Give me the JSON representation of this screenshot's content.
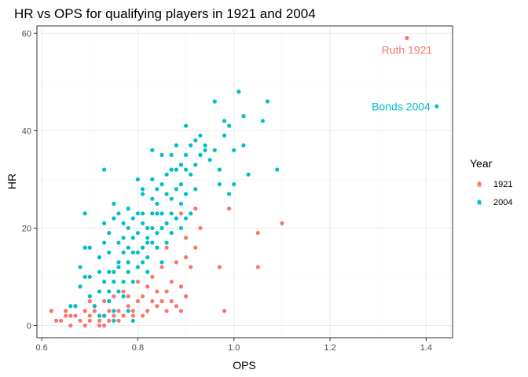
{
  "chart_data": {
    "type": "scatter",
    "title": "HR vs OPS for qualifying players in 1921 and 2004",
    "xlabel": "OPS",
    "ylabel": "HR",
    "xlim": [
      0.59,
      1.455
    ],
    "ylim": [
      -2.5,
      61.5
    ],
    "x_ticks": [
      0.6,
      0.8,
      1.0,
      1.2,
      1.4
    ],
    "x_tick_labels": [
      "0.6",
      "0.8",
      "1.0",
      "1.2",
      "1.4"
    ],
    "y_ticks": [
      0,
      20,
      40,
      60
    ],
    "y_tick_labels": [
      "0",
      "20",
      "40",
      "60"
    ],
    "grid": true,
    "legend": {
      "title": "Year",
      "position": "right",
      "entries": [
        {
          "label": "1921",
          "color": "#F8766D"
        },
        {
          "label": "2004",
          "color": "#00BFC4"
        }
      ]
    },
    "annotations": [
      {
        "text": "Ruth 1921",
        "x": 1.36,
        "y": 59,
        "color": "#F8766D"
      },
      {
        "text": "Bonds 2004",
        "x": 1.422,
        "y": 45,
        "color": "#00BFC4"
      }
    ],
    "series": [
      {
        "name": "1921",
        "color": "#F8766D",
        "points": [
          [
            0.62,
            3
          ],
          [
            0.63,
            1
          ],
          [
            0.64,
            1
          ],
          [
            0.65,
            2
          ],
          [
            0.65,
            3
          ],
          [
            0.66,
            0
          ],
          [
            0.66,
            2
          ],
          [
            0.67,
            2
          ],
          [
            0.67,
            4
          ],
          [
            0.68,
            1
          ],
          [
            0.69,
            0
          ],
          [
            0.69,
            3
          ],
          [
            0.7,
            1
          ],
          [
            0.7,
            2
          ],
          [
            0.7,
            5
          ],
          [
            0.71,
            3
          ],
          [
            0.71,
            4
          ],
          [
            0.72,
            0
          ],
          [
            0.72,
            1
          ],
          [
            0.73,
            0
          ],
          [
            0.73,
            2
          ],
          [
            0.73,
            5
          ],
          [
            0.74,
            1
          ],
          [
            0.74,
            3
          ],
          [
            0.75,
            2
          ],
          [
            0.75,
            6
          ],
          [
            0.76,
            1
          ],
          [
            0.76,
            3
          ],
          [
            0.77,
            2
          ],
          [
            0.77,
            7
          ],
          [
            0.78,
            4
          ],
          [
            0.78,
            6
          ],
          [
            0.79,
            3
          ],
          [
            0.79,
            2
          ],
          [
            0.8,
            5
          ],
          [
            0.8,
            9
          ],
          [
            0.81,
            2
          ],
          [
            0.81,
            6
          ],
          [
            0.82,
            3
          ],
          [
            0.82,
            8
          ],
          [
            0.83,
            5
          ],
          [
            0.83,
            10
          ],
          [
            0.84,
            4
          ],
          [
            0.84,
            7
          ],
          [
            0.85,
            5
          ],
          [
            0.85,
            12
          ],
          [
            0.86,
            3
          ],
          [
            0.86,
            7
          ],
          [
            0.86,
            16
          ],
          [
            0.87,
            5
          ],
          [
            0.87,
            9
          ],
          [
            0.88,
            4
          ],
          [
            0.88,
            13
          ],
          [
            0.89,
            3
          ],
          [
            0.89,
            8
          ],
          [
            0.89,
            23
          ],
          [
            0.9,
            6
          ],
          [
            0.9,
            14
          ],
          [
            0.9,
            18
          ],
          [
            0.91,
            12
          ],
          [
            0.91,
            23
          ],
          [
            0.92,
            16
          ],
          [
            0.92,
            24
          ],
          [
            0.93,
            20
          ],
          [
            0.97,
            12
          ],
          [
            0.98,
            3
          ],
          [
            0.99,
            24
          ],
          [
            1.05,
            12
          ],
          [
            1.05,
            19
          ],
          [
            1.1,
            21
          ],
          [
            1.36,
            59
          ]
        ]
      },
      {
        "name": "2004",
        "color": "#00BFC4",
        "points": [
          [
            0.66,
            4
          ],
          [
            0.67,
            4
          ],
          [
            0.68,
            12
          ],
          [
            0.68,
            8
          ],
          [
            0.69,
            23
          ],
          [
            0.69,
            16
          ],
          [
            0.69,
            10
          ],
          [
            0.7,
            10
          ],
          [
            0.7,
            16
          ],
          [
            0.7,
            6
          ],
          [
            0.71,
            4
          ],
          [
            0.72,
            14
          ],
          [
            0.72,
            7
          ],
          [
            0.72,
            2
          ],
          [
            0.72,
            11
          ],
          [
            0.73,
            32
          ],
          [
            0.73,
            17
          ],
          [
            0.73,
            9
          ],
          [
            0.73,
            2
          ],
          [
            0.73,
            21
          ],
          [
            0.74,
            11
          ],
          [
            0.74,
            19
          ],
          [
            0.74,
            7
          ],
          [
            0.74,
            15
          ],
          [
            0.74,
            5
          ],
          [
            0.75,
            25
          ],
          [
            0.75,
            22
          ],
          [
            0.75,
            11
          ],
          [
            0.75,
            3
          ],
          [
            0.75,
            9
          ],
          [
            0.75,
            1
          ],
          [
            0.76,
            13
          ],
          [
            0.76,
            23
          ],
          [
            0.76,
            7
          ],
          [
            0.76,
            17
          ],
          [
            0.76,
            12
          ],
          [
            0.77,
            15
          ],
          [
            0.77,
            21
          ],
          [
            0.77,
            9
          ],
          [
            0.77,
            6
          ],
          [
            0.77,
            18
          ],
          [
            0.78,
            13
          ],
          [
            0.78,
            24
          ],
          [
            0.78,
            16
          ],
          [
            0.78,
            11
          ],
          [
            0.78,
            3
          ],
          [
            0.78,
            20
          ],
          [
            0.79,
            15
          ],
          [
            0.79,
            18
          ],
          [
            0.79,
            9
          ],
          [
            0.79,
            22
          ],
          [
            0.79,
            1
          ],
          [
            0.8,
            23
          ],
          [
            0.8,
            30
          ],
          [
            0.8,
            15
          ],
          [
            0.8,
            19
          ],
          [
            0.8,
            12
          ],
          [
            0.81,
            27
          ],
          [
            0.81,
            21
          ],
          [
            0.81,
            28
          ],
          [
            0.81,
            16
          ],
          [
            0.81,
            13
          ],
          [
            0.81,
            23
          ],
          [
            0.82,
            18
          ],
          [
            0.82,
            20
          ],
          [
            0.82,
            17
          ],
          [
            0.82,
            11
          ],
          [
            0.82,
            14
          ],
          [
            0.83,
            36
          ],
          [
            0.83,
            30
          ],
          [
            0.83,
            23
          ],
          [
            0.83,
            20
          ],
          [
            0.83,
            17
          ],
          [
            0.83,
            26
          ],
          [
            0.84,
            25
          ],
          [
            0.84,
            16
          ],
          [
            0.84,
            28
          ],
          [
            0.84,
            19
          ],
          [
            0.84,
            23
          ],
          [
            0.85,
            29
          ],
          [
            0.85,
            35
          ],
          [
            0.85,
            23
          ],
          [
            0.85,
            20
          ],
          [
            0.85,
            13
          ],
          [
            0.86,
            31
          ],
          [
            0.86,
            21
          ],
          [
            0.86,
            27
          ],
          [
            0.86,
            17
          ],
          [
            0.87,
            32
          ],
          [
            0.87,
            35
          ],
          [
            0.87,
            26
          ],
          [
            0.87,
            23
          ],
          [
            0.87,
            19
          ],
          [
            0.88,
            32
          ],
          [
            0.88,
            28
          ],
          [
            0.88,
            22
          ],
          [
            0.88,
            37
          ],
          [
            0.89,
            33
          ],
          [
            0.89,
            29
          ],
          [
            0.89,
            25
          ],
          [
            0.89,
            20
          ],
          [
            0.9,
            41
          ],
          [
            0.9,
            32
          ],
          [
            0.9,
            27
          ],
          [
            0.9,
            22
          ],
          [
            0.9,
            35
          ],
          [
            0.91,
            37
          ],
          [
            0.91,
            31
          ],
          [
            0.91,
            23
          ],
          [
            0.92,
            38
          ],
          [
            0.92,
            33
          ],
          [
            0.92,
            28
          ],
          [
            0.93,
            39
          ],
          [
            0.93,
            35
          ],
          [
            0.94,
            37
          ],
          [
            0.94,
            36
          ],
          [
            0.95,
            34
          ],
          [
            0.96,
            46
          ],
          [
            0.96,
            36
          ],
          [
            0.97,
            32
          ],
          [
            0.97,
            29
          ],
          [
            0.98,
            42
          ],
          [
            0.98,
            39
          ],
          [
            0.99,
            41
          ],
          [
            0.99,
            27
          ],
          [
            1.0,
            36
          ],
          [
            1.0,
            29
          ],
          [
            1.01,
            48
          ],
          [
            1.02,
            37
          ],
          [
            1.02,
            43
          ],
          [
            1.03,
            31
          ],
          [
            1.06,
            42
          ],
          [
            1.07,
            46
          ],
          [
            1.09,
            32
          ],
          [
            1.422,
            45
          ]
        ]
      }
    ]
  }
}
